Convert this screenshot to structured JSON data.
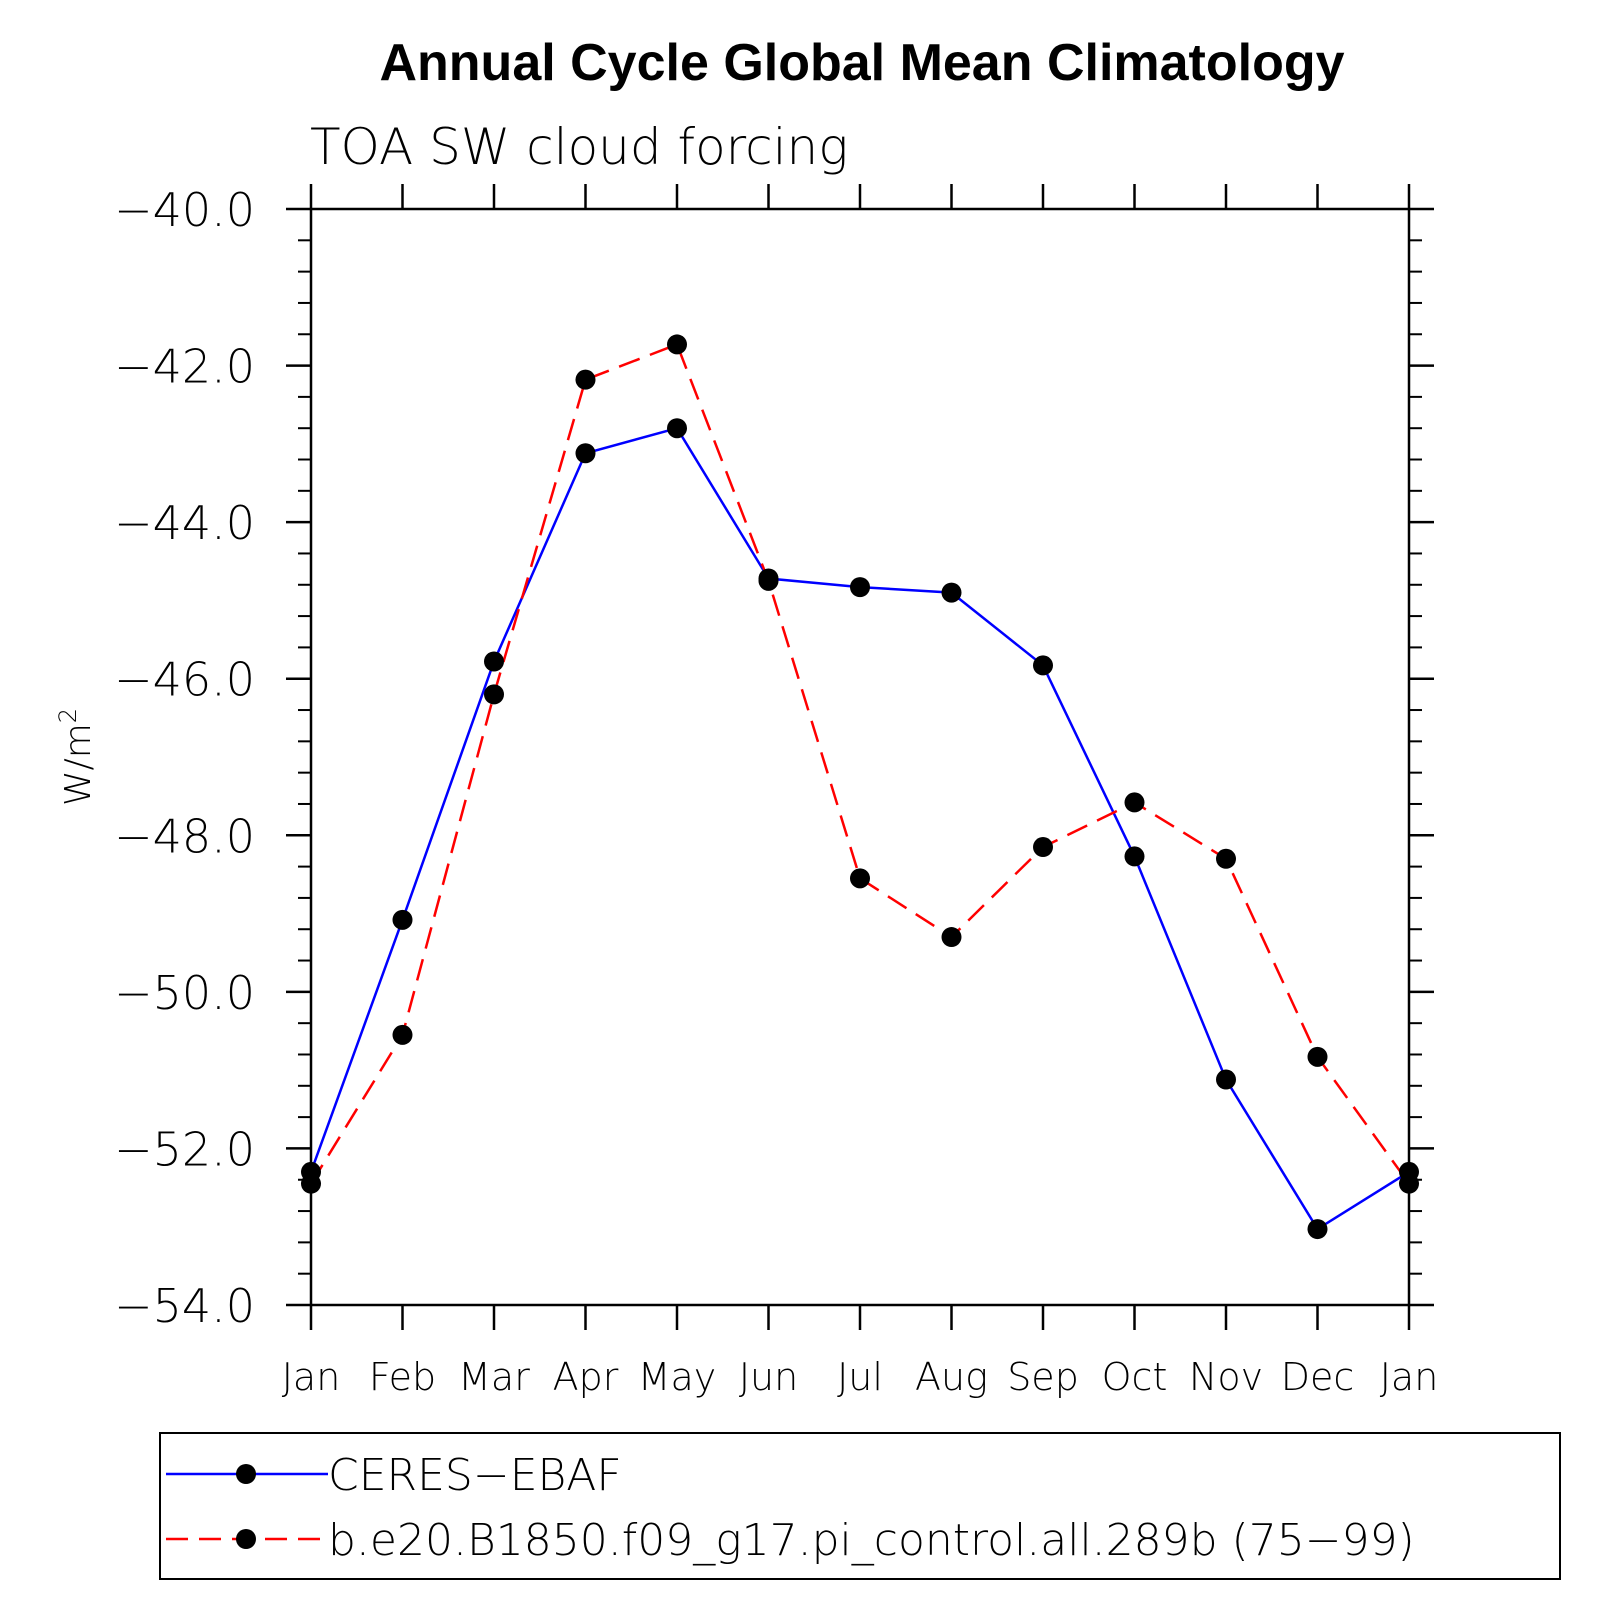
{
  "chart_data": {
    "type": "line",
    "title": "Annual Cycle Global Mean Climatology",
    "subtitle": "TOA SW cloud forcing",
    "ylabel": "W/m",
    "ylabel_superscript": "2",
    "xlabel": "",
    "categories": [
      "Jan",
      "Feb",
      "Mar",
      "Apr",
      "May",
      "Jun",
      "Jul",
      "Aug",
      "Sep",
      "Oct",
      "Nov",
      "Dec",
      "Jan"
    ],
    "ylim": [
      -54.0,
      -40.0
    ],
    "yticks": [
      "-40.0",
      "-42.0",
      "-44.0",
      "-46.0",
      "-48.0",
      "-50.0",
      "-52.0",
      "-54.0"
    ],
    "ytick_values": [
      -40,
      -42,
      -44,
      -46,
      -48,
      -50,
      -52,
      -54
    ],
    "grid": false,
    "legend_position": "bottom",
    "series": [
      {
        "name": "CERES-EBAF",
        "color": "#0000ff",
        "dashed": false,
        "values": [
          -52.3,
          -49.08,
          -45.78,
          -43.12,
          -42.8,
          -44.72,
          -44.83,
          -44.9,
          -45.83,
          -48.27,
          -51.12,
          -53.03,
          -52.3
        ]
      },
      {
        "name": "b.e20.B1850.f09_g17.pi_control.all.289b (75-99)",
        "color": "#ff0000",
        "dashed": true,
        "values": [
          -52.45,
          -50.55,
          -46.2,
          -42.18,
          -41.73,
          -44.75,
          -48.55,
          -49.3,
          -48.15,
          -47.58,
          -48.3,
          -50.83,
          -52.45
        ]
      }
    ]
  }
}
